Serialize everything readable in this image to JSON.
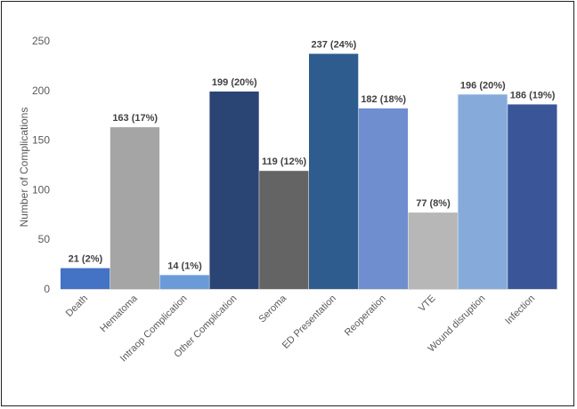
{
  "chart_data": {
    "type": "bar",
    "title": "",
    "xlabel": "",
    "ylabel": "Number of Complications",
    "ylim": [
      0,
      250
    ],
    "yticks": [
      0,
      50,
      100,
      150,
      200,
      250
    ],
    "grid": false,
    "categories": [
      "Death",
      "Hematoma",
      "Intraop Complication",
      "Other Complication",
      "Seroma",
      "ED Presentation",
      "Reoperation",
      "VTE",
      "Wound disruption",
      "Infection"
    ],
    "values": [
      21,
      163,
      14,
      199,
      119,
      237,
      182,
      77,
      196,
      186
    ],
    "data_labels": [
      "21 (2%)",
      "163 (17%)",
      "14 (1%)",
      "199 (20%)",
      "119 (12%)",
      "237 (24%)",
      "182 (18%)",
      "77 (8%)",
      "196 (20%)",
      "186 (19%)"
    ],
    "colors": [
      "#4472C4",
      "#A5A5A5",
      "#6A9BD8",
      "#2A4474",
      "#646464",
      "#2E5C8E",
      "#6E8ECF",
      "#B7B7B7",
      "#86ABDB",
      "#3A5698"
    ]
  }
}
